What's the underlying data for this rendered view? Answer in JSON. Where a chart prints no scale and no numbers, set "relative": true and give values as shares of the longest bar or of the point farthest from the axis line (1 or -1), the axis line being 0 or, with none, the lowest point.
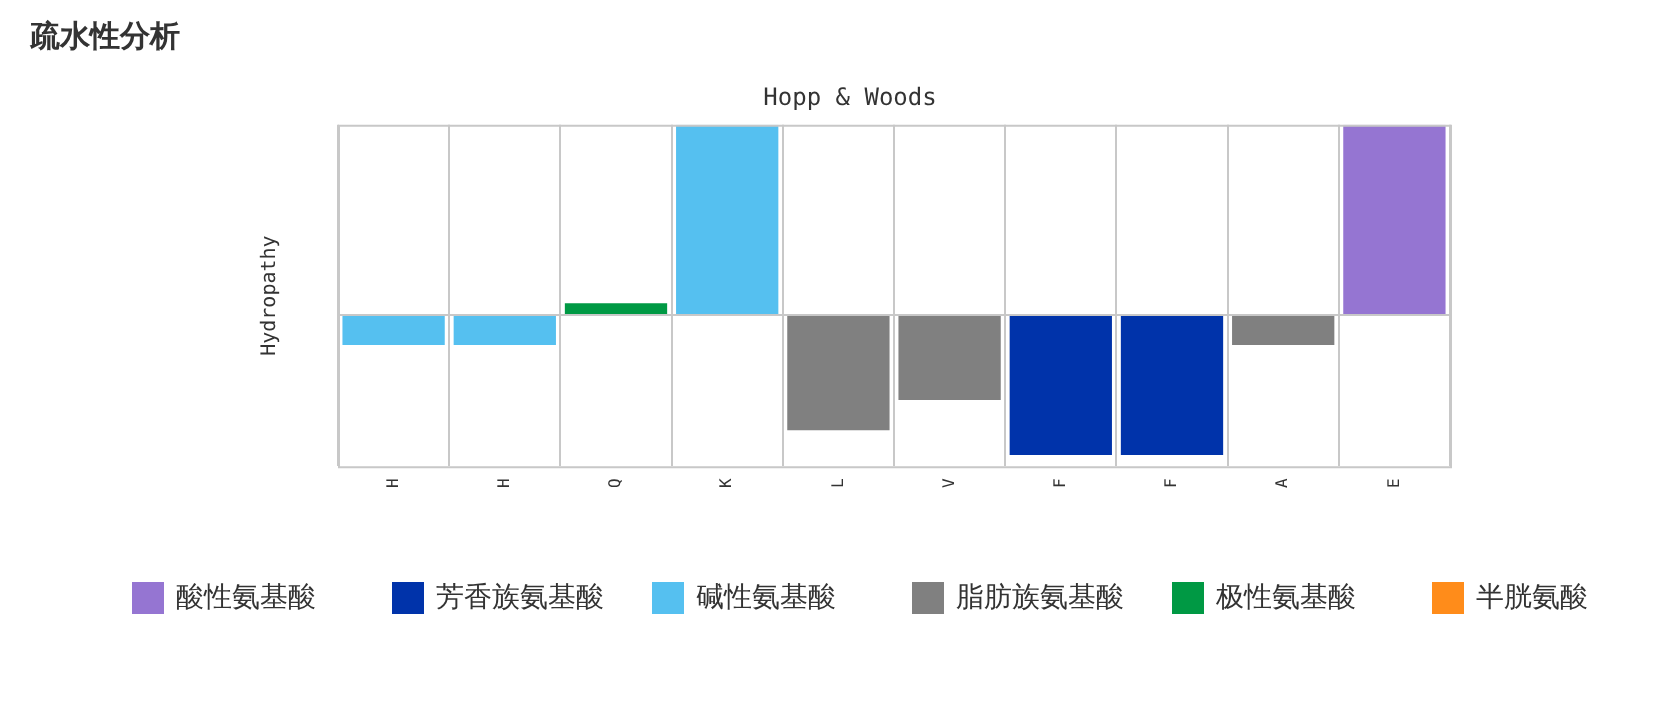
{
  "chart_data": {
    "type": "bar",
    "title": "疏水性分析",
    "subtitle": "Hopp & Woods",
    "ylabel": "Hydropathy",
    "relative": true,
    "stacked": true,
    "grid": "x",
    "legend": "bottom",
    "categories": [
      "H",
      "H",
      "Q",
      "K",
      "L",
      "V",
      "F",
      "F",
      "A",
      "E"
    ],
    "series": [
      {
        "name": "酸性氨基酸",
        "color": "#9575d2",
        "values": [
          null,
          null,
          null,
          null,
          null,
          null,
          null,
          null,
          null,
          1
        ]
      },
      {
        "name": "芳香族氨基酸",
        "color": "#0033aa",
        "values": [
          null,
          null,
          null,
          null,
          null,
          null,
          -0.74,
          -0.74,
          null,
          null
        ]
      },
      {
        "name": "碱性氨基酸",
        "color": "#55c0f0",
        "values": [
          -0.16,
          -0.16,
          null,
          1,
          null,
          null,
          null,
          null,
          null,
          null
        ]
      },
      {
        "name": "脂肪族氨基酸",
        "color": "#808080",
        "values": [
          null,
          null,
          null,
          null,
          -0.61,
          -0.45,
          null,
          null,
          -0.16,
          null
        ]
      },
      {
        "name": "极性氨基酸",
        "color": "#009944",
        "values": [
          null,
          null,
          0.06,
          null,
          null,
          null,
          null,
          null,
          null,
          null
        ]
      },
      {
        "name": "半胱氨酸",
        "color": "#ff8c1a",
        "values": [
          null,
          null,
          null,
          null,
          null,
          null,
          null,
          null,
          null,
          null
        ]
      }
    ]
  }
}
